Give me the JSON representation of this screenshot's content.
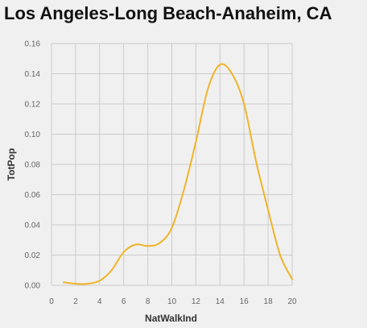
{
  "chart_data": {
    "type": "line",
    "title": "Los Angeles-Long Beach-Anaheim, CA",
    "xlabel": "NatWalkInd",
    "ylabel": "TotPop",
    "xlim": [
      0,
      20
    ],
    "ylim": [
      0,
      0.16
    ],
    "x_ticks": [
      "0",
      "2",
      "4",
      "6",
      "8",
      "10",
      "12",
      "14",
      "16",
      "18",
      "20"
    ],
    "y_ticks": [
      "0.00",
      "0.02",
      "0.04",
      "0.06",
      "0.08",
      "0.10",
      "0.12",
      "0.14",
      "0.16"
    ],
    "grid": true,
    "line_color": "#f0b429",
    "series": [
      {
        "x": [
          1,
          2,
          3,
          4,
          5,
          6,
          7,
          8,
          9,
          10,
          11,
          12,
          13,
          14,
          15,
          16,
          17,
          18,
          19,
          20
        ],
        "y": [
          0.002,
          0.001,
          0.001,
          0.003,
          0.01,
          0.022,
          0.027,
          0.026,
          0.028,
          0.038,
          0.063,
          0.095,
          0.13,
          0.146,
          0.14,
          0.12,
          0.082,
          0.05,
          0.02,
          0.004
        ]
      }
    ]
  }
}
